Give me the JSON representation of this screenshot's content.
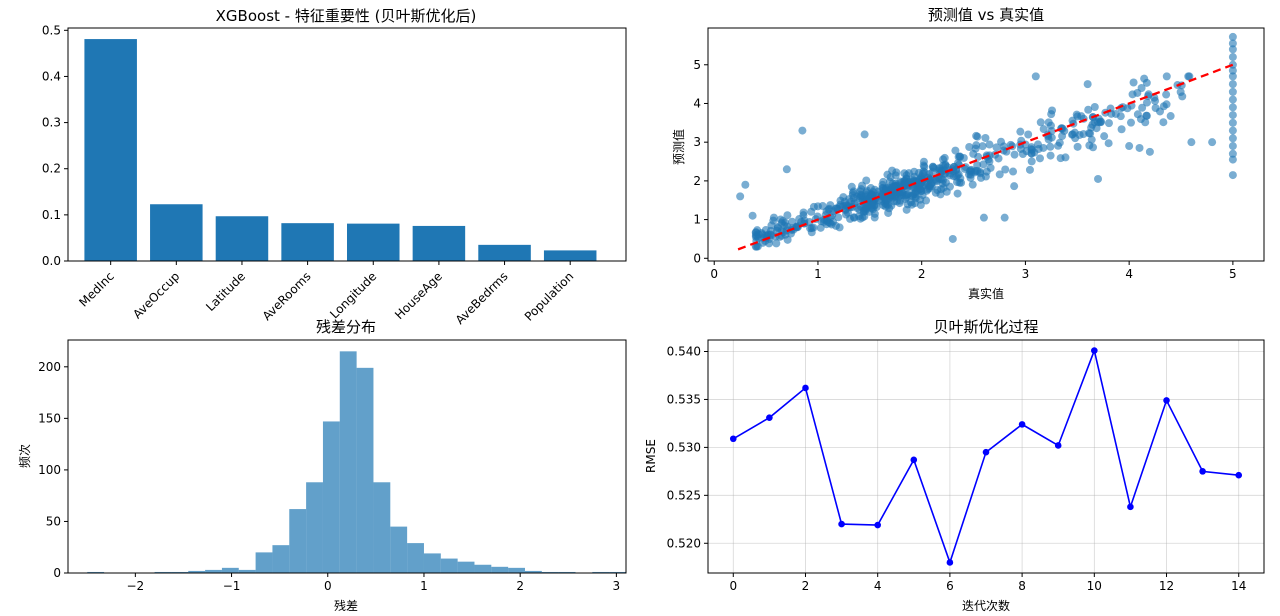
{
  "colors": {
    "bar": "#1f77b4",
    "hist": "#1f77b4",
    "scatter": "#1f77b4",
    "diagonal": "#ff0000",
    "opt_line": "#0000ff",
    "grid": "#b0b0b0"
  },
  "chart_data": [
    {
      "id": "importance",
      "type": "bar",
      "title": "XGBoost - 特征重要性 (贝叶斯优化后)",
      "xlabel": "",
      "ylabel": "",
      "categories": [
        "MedInc",
        "AveOccup",
        "Latitude",
        "AveRooms",
        "Longitude",
        "HouseAge",
        "AveBedrms",
        "Population"
      ],
      "values": [
        0.481,
        0.123,
        0.097,
        0.082,
        0.081,
        0.076,
        0.035,
        0.023
      ],
      "ylim": [
        0,
        0.505
      ],
      "yticks": [
        0,
        0.1,
        0.2,
        0.3,
        0.4,
        0.5
      ],
      "ytick_labels": [
        "0.0",
        "0.1",
        "0.2",
        "0.3",
        "0.4",
        "0.5"
      ],
      "grid": false
    },
    {
      "id": "pred_vs_true",
      "type": "scatter",
      "title": "预测值 vs 真实值",
      "xlabel": "真实值",
      "ylabel": "预测值",
      "xlim": [
        -0.06,
        5.3
      ],
      "ylim": [
        -0.07,
        5.95
      ],
      "xticks": [
        0,
        1,
        2,
        3,
        4,
        5
      ],
      "yticks": [
        0,
        1,
        2,
        3,
        4,
        5
      ],
      "grid": false,
      "reference_line": {
        "x": [
          0.23,
          5.0
        ],
        "y": [
          0.23,
          5.0
        ],
        "style": "dashed"
      },
      "points": [
        [
          0.25,
          1.6
        ],
        [
          0.3,
          1.9
        ],
        [
          0.37,
          1.1
        ],
        [
          0.85,
          3.3
        ],
        [
          1.45,
          3.2
        ],
        [
          2.3,
          0.5
        ],
        [
          2.8,
          1.05
        ],
        [
          3.1,
          4.7
        ],
        [
          3.6,
          4.5
        ],
        [
          3.7,
          2.05
        ],
        [
          4.0,
          2.9
        ],
        [
          4.1,
          2.85
        ],
        [
          4.2,
          2.75
        ],
        [
          4.6,
          3.0
        ],
        [
          4.8,
          3.0
        ],
        [
          2.6,
          1.05
        ],
        [
          0.7,
          2.3
        ],
        [
          5.0,
          5.72
        ],
        [
          5.0,
          5.55
        ],
        [
          5.0,
          5.4
        ],
        [
          5.0,
          5.2
        ],
        [
          5.0,
          5.0
        ],
        [
          5.0,
          4.85
        ],
        [
          5.0,
          4.7
        ],
        [
          5.0,
          4.5
        ],
        [
          5.0,
          4.3
        ],
        [
          5.0,
          4.1
        ],
        [
          5.0,
          3.9
        ],
        [
          5.0,
          3.7
        ],
        [
          5.0,
          3.5
        ],
        [
          5.0,
          3.3
        ],
        [
          5.0,
          3.1
        ],
        [
          5.0,
          2.9
        ],
        [
          5.0,
          2.7
        ],
        [
          5.0,
          2.55
        ],
        [
          5.0,
          2.15
        ]
      ]
    },
    {
      "id": "residuals",
      "type": "bar",
      "title": "残差分布",
      "xlabel": "残差",
      "ylabel": "频次",
      "bin_start": -2.5,
      "bin_width": 0.175,
      "counts": [
        1,
        0,
        0,
        0,
        1,
        1,
        2,
        3,
        5,
        3,
        20,
        27,
        62,
        88,
        147,
        215,
        199,
        88,
        45,
        29,
        19,
        14,
        11,
        8,
        6,
        5,
        2,
        1,
        1,
        0,
        1,
        1
      ],
      "xlim": [
        -2.7,
        3.1
      ],
      "ylim": [
        0,
        226
      ],
      "xticks": [
        -2,
        -1,
        0,
        1,
        2,
        3
      ],
      "yticks": [
        0,
        50,
        100,
        150,
        200
      ],
      "grid": false
    },
    {
      "id": "bayes_opt",
      "type": "line",
      "title": "贝叶斯优化过程",
      "xlabel": "迭代次数",
      "ylabel": "RMSE",
      "x": [
        0,
        1,
        2,
        3,
        4,
        5,
        6,
        7,
        8,
        9,
        10,
        11,
        12,
        13,
        14
      ],
      "y": [
        0.5309,
        0.5331,
        0.5362,
        0.522,
        0.5219,
        0.5287,
        0.518,
        0.5295,
        0.5324,
        0.5302,
        0.5401,
        0.5238,
        0.5349,
        0.5275,
        0.5271
      ],
      "xlim": [
        -0.7,
        14.7
      ],
      "ylim": [
        0.5169,
        0.5412
      ],
      "xticks": [
        0,
        2,
        4,
        6,
        8,
        10,
        12,
        14
      ],
      "yticks": [
        0.52,
        0.525,
        0.53,
        0.535,
        0.54
      ],
      "ytick_labels": [
        "0.520",
        "0.525",
        "0.530",
        "0.535",
        "0.540"
      ],
      "grid": true,
      "marker": "o"
    }
  ]
}
